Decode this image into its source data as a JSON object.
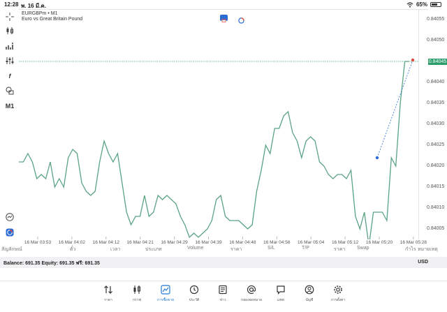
{
  "status": {
    "time": "12:28",
    "date": "พ. 16 มี.ค.",
    "battery": "65%",
    "battery_level": 0.65
  },
  "chart": {
    "symbol": "EURGBPm • M1",
    "description": "Euro vs Great Britain Pound",
    "current_price": "0.84045",
    "price_labels": [
      "0.84055",
      "0.84050",
      "0.84040",
      "0.84035",
      "0.84030",
      "0.84025",
      "0.84020",
      "0.84015",
      "0.84010",
      "0.84005"
    ],
    "time_labels": [
      "16 Mar 03:53",
      "16 Mar 04:02",
      "16 Mar 04:12",
      "16 Mar 04:21",
      "16 Mar 04:29",
      "16 Mar 04:39",
      "16 Mar 04:48",
      "16 Mar 04:56",
      "16 Mar 05:04",
      "16 Mar 05:12",
      "16 Mar 05:20",
      "16 Mar 05:28"
    ],
    "timeframe": "M1",
    "line_color": "#5aa383",
    "bid_line_color": "#2b9e6c",
    "marker_blue": "#2a6bd4",
    "marker_red": "#e04a3a"
  },
  "chart_data": {
    "type": "line",
    "ylim": [
      0.840025,
      0.840575
    ],
    "y": [
      0.84021,
      0.84021,
      0.84023,
      0.84021,
      0.84017,
      0.84018,
      0.84017,
      0.84021,
      0.84015,
      0.84017,
      0.84015,
      0.84022,
      0.84024,
      0.84023,
      0.84016,
      0.84014,
      0.84013,
      0.84014,
      0.84021,
      0.84026,
      0.84023,
      0.84021,
      0.84023,
      0.84016,
      0.84009,
      0.84006,
      0.84008,
      0.84008,
      0.84013,
      0.84008,
      0.84009,
      0.84013,
      0.84012,
      0.84013,
      0.84012,
      0.84011,
      0.84008,
      0.84006,
      0.84003,
      0.84004,
      0.84003,
      0.84004,
      0.84005,
      0.84007,
      0.84012,
      0.84013,
      0.84008,
      0.84007,
      0.84007,
      0.84007,
      0.84006,
      0.84005,
      0.84006,
      0.84014,
      0.84019,
      0.84025,
      0.84023,
      0.84029,
      0.84029,
      0.84032,
      0.84033,
      0.84028,
      0.84026,
      0.84022,
      0.84026,
      0.84027,
      0.84026,
      0.84021,
      0.8402,
      0.84018,
      0.84017,
      0.84018,
      0.84018,
      0.84017,
      0.84019,
      0.84008,
      0.84005,
      0.84009,
      0.84001,
      0.84009,
      0.84009,
      0.84009,
      0.84007,
      0.84022,
      0.8402,
      0.84035,
      0.84045,
      0.84045
    ],
    "pending_order_price": 0.84022
  },
  "tools": {
    "crosshair": "crosshair-icon",
    "candles": "candles-icon",
    "indicators": "indicators-icon",
    "settings": "sliders-icon",
    "formula": "f",
    "objects": "shapes-icon",
    "timeframe": "M1"
  },
  "table_headers": [
    "สัญลักษณ์",
    "ตั๋ว",
    "เวลา",
    "ประเภท",
    "Volume",
    "ราคา",
    "S/L",
    "T/P",
    "ราคา",
    "Swap",
    "กำไร",
    "หมายเหตุ"
  ],
  "balance": {
    "text": "Balance: 691.35 Equity: 691.35 ฟรี: 691.35",
    "currency": "USD"
  },
  "nav": [
    {
      "label": "ราคา",
      "icon": "quotes-icon"
    },
    {
      "label": "กราฟ",
      "icon": "chart-icon"
    },
    {
      "label": "การซื้อขาย",
      "icon": "trade-icon"
    },
    {
      "label": "ประวัติ",
      "icon": "history-icon"
    },
    {
      "label": "ข่าว",
      "icon": "news-icon"
    },
    {
      "label": "กล่องจดหมาย",
      "icon": "mailbox-icon"
    },
    {
      "label": "แชท",
      "icon": "chat-icon"
    },
    {
      "label": "บัญชี",
      "icon": "account-icon"
    },
    {
      "label": "การตั้งค่า",
      "icon": "settings-icon"
    }
  ],
  "active_nav": 2
}
